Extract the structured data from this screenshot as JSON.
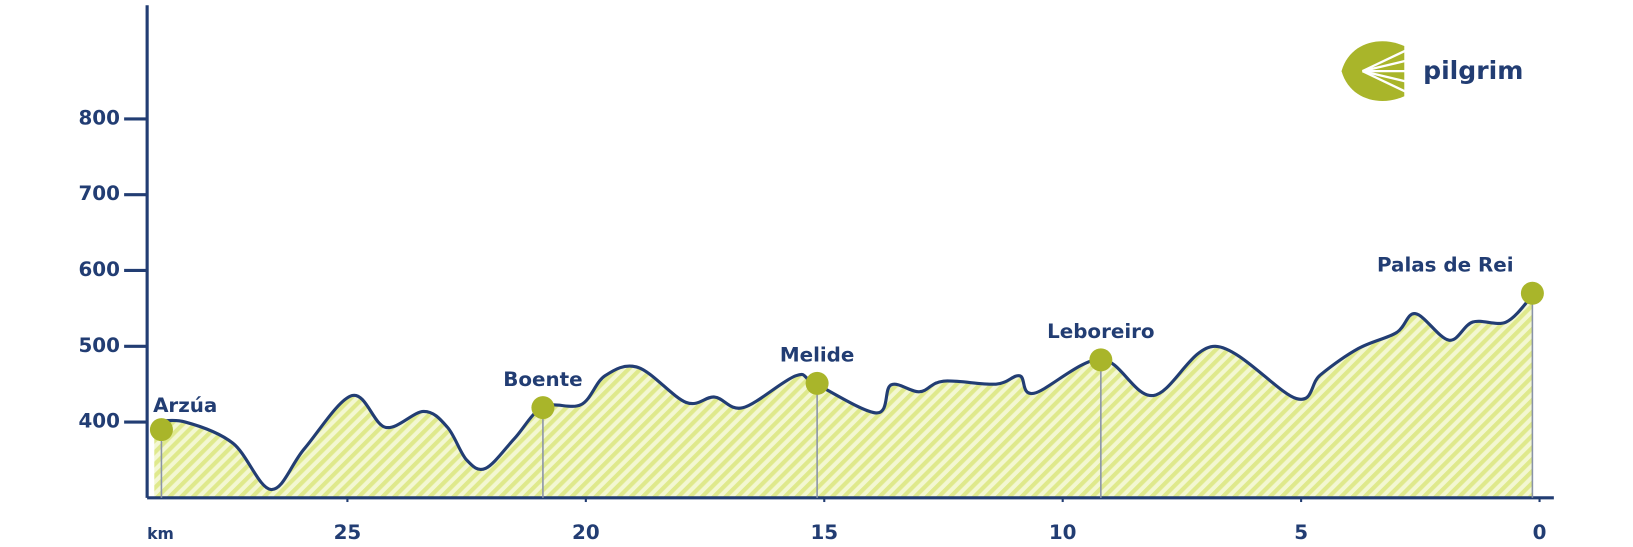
{
  "chart_data": {
    "type": "area",
    "brand": "pilgrim",
    "x_label": "km",
    "x": [
      29.05,
      28.4,
      27.4,
      26.6,
      25.9,
      24.9,
      24.2,
      23.4,
      22.9,
      22.5,
      22.1,
      21.5,
      20.9,
      20.1,
      19.6,
      18.9,
      17.9,
      17.3,
      16.7,
      15.6,
      15.2,
      13.9,
      13.6,
      13.0,
      12.5,
      11.4,
      10.9,
      10.6,
      9.2,
      8.1,
      6.8,
      5.1,
      4.6,
      3.8,
      3.0,
      2.6,
      1.9,
      1.4,
      0.7,
      0.15
    ],
    "values": [
      400,
      400,
      372,
      311,
      365,
      435,
      393,
      414,
      393,
      350,
      339,
      378,
      420,
      423,
      461,
      472,
      426,
      433,
      419,
      461,
      451,
      412,
      449,
      440,
      454,
      450,
      461,
      438,
      483,
      435,
      500,
      431,
      462,
      497,
      518,
      543,
      508,
      532,
      532,
      567
    ],
    "markers": [
      {
        "label": "Arzúa",
        "x": 28.9,
        "value": 390
      },
      {
        "label": "Boente",
        "x": 20.9,
        "value": 419
      },
      {
        "label": "Melide",
        "x": 15.15,
        "value": 451
      },
      {
        "label": "Leboreiro",
        "x": 9.2,
        "value": 482
      },
      {
        "label": "Palas de Rei",
        "x": 0.15,
        "value": 570
      }
    ],
    "xlim": [
      29.2,
      -0.3
    ],
    "ylim": [
      300,
      950
    ],
    "xticks": [
      25,
      20,
      15,
      10,
      5,
      0
    ],
    "yticks": [
      400,
      500,
      600,
      700,
      800
    ],
    "color": "#223d73",
    "fill_color": "#dfe98c",
    "marker_color": "#a9b52a",
    "grid": false
  }
}
